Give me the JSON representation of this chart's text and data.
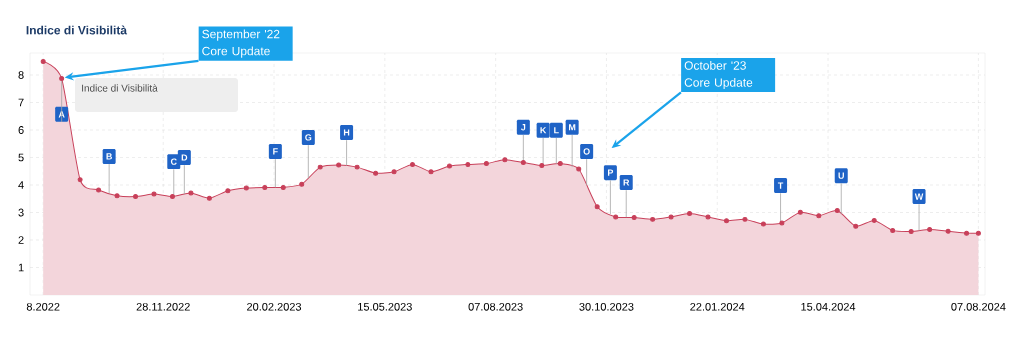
{
  "chart_data": {
    "type": "area",
    "title": "Indice di Visibilità",
    "marker": "circle",
    "grid": true,
    "color": "#c8405a",
    "x": [
      "2022-08-29",
      "2022-09-12",
      "2022-09-26",
      "2022-10-10",
      "2022-10-24",
      "2022-11-07",
      "2022-11-21",
      "2022-12-05",
      "2022-12-19",
      "2023-01-02",
      "2023-01-16",
      "2023-01-30",
      "2023-02-13",
      "2023-02-27",
      "2023-03-13",
      "2023-03-27",
      "2023-04-10",
      "2023-04-24",
      "2023-05-08",
      "2023-05-22",
      "2023-06-05",
      "2023-06-19",
      "2023-07-03",
      "2023-07-17",
      "2023-07-31",
      "2023-08-14",
      "2023-08-28",
      "2023-09-11",
      "2023-09-25",
      "2023-10-09",
      "2023-10-23",
      "2023-11-06",
      "2023-11-20",
      "2023-12-04",
      "2023-12-18",
      "2024-01-01",
      "2024-01-15",
      "2024-01-29",
      "2024-02-12",
      "2024-02-26",
      "2024-03-11",
      "2024-03-25",
      "2024-04-08",
      "2024-04-22",
      "2024-05-06",
      "2024-05-20",
      "2024-06-03",
      "2024-06-17",
      "2024-07-01",
      "2024-07-15",
      "2024-07-29",
      "2024-08-07"
    ],
    "values": [
      8.49,
      7.87,
      4.19,
      3.82,
      3.61,
      3.58,
      3.67,
      3.58,
      3.71,
      3.52,
      3.79,
      3.89,
      3.91,
      3.91,
      4.03,
      4.65,
      4.73,
      4.65,
      4.43,
      4.48,
      4.75,
      4.48,
      4.69,
      4.75,
      4.78,
      4.92,
      4.82,
      4.71,
      4.78,
      4.58,
      3.21,
      2.84,
      2.82,
      2.75,
      2.84,
      2.96,
      2.84,
      2.7,
      2.75,
      2.58,
      2.62,
      3.01,
      2.88,
      3.07,
      2.5,
      2.71,
      2.35,
      2.31,
      2.38,
      2.32,
      2.25,
      2.25
    ],
    "xlim": [
      "2022-08-19",
      "2024-08-12"
    ],
    "ylim": [
      0,
      8.8
    ],
    "xticks": [
      {
        "value": "2022-08-29",
        "label": "8.2022"
      },
      {
        "value": "2022-11-28",
        "label": "28.11.2022"
      },
      {
        "value": "2023-02-20",
        "label": "20.02.2023"
      },
      {
        "value": "2023-05-15",
        "label": "15.05.2023"
      },
      {
        "value": "2023-08-07",
        "label": "07.08.2023"
      },
      {
        "value": "2023-10-30",
        "label": "30.10.2023"
      },
      {
        "value": "2024-01-22",
        "label": "22.01.2024"
      },
      {
        "value": "2024-04-15",
        "label": "15.04.2024"
      },
      {
        "value": "2024-08-07",
        "label": "07.08.2024"
      }
    ],
    "yticks": [
      1,
      2,
      3,
      4,
      5,
      6,
      7,
      8
    ],
    "annotations": [
      {
        "text": "September '22 Core Update",
        "x": "2022-09-12",
        "y": 7.87
      },
      "October '23 Core Update",
      "Indice di Visibilità",
      {
        "text": "A",
        "x": "2022-09-12",
        "y": 6.57
      },
      {
        "text": "B",
        "x": "2022-10-18",
        "y": 5.04
      },
      {
        "text": "C",
        "x": "2022-12-06",
        "y": 4.85
      },
      {
        "text": "D",
        "x": "2022-12-14",
        "y": 5.0
      },
      {
        "text": "F",
        "x": "2023-02-21",
        "y": 5.22
      },
      {
        "text": "G",
        "x": "2023-03-18",
        "y": 5.73
      },
      {
        "text": "H",
        "x": "2023-04-16",
        "y": 5.91
      },
      {
        "text": "J",
        "x": "2023-08-28",
        "y": 6.1
      },
      {
        "text": "K",
        "x": "2023-09-12",
        "y": 5.99
      },
      {
        "text": "L",
        "x": "2023-09-22",
        "y": 5.99
      },
      {
        "text": "M",
        "x": "2023-10-04",
        "y": 6.1
      },
      {
        "text": "O",
        "x": "2023-10-15",
        "y": 5.22
      },
      {
        "text": "P",
        "x": "2023-11-02",
        "y": 4.45
      },
      {
        "text": "R",
        "x": "2023-11-14",
        "y": 4.09
      },
      {
        "text": "T",
        "x": "2024-03-10",
        "y": 3.98
      },
      {
        "text": "U",
        "x": "2024-04-25",
        "y": 4.34
      },
      {
        "text": "W",
        "x": "2024-06-23",
        "y": 3.58
      }
    ]
  }
}
